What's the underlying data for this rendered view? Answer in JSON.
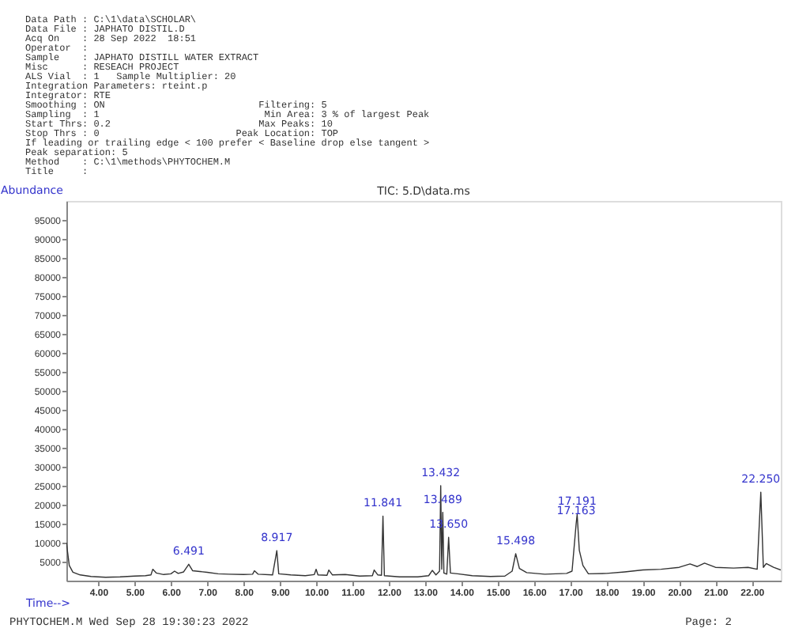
{
  "chart_data": {
    "type": "line",
    "title": "TIC: 5.D\\data.ms",
    "xlabel": "Time-->",
    "ylabel": "Abundance",
    "annotations": [
      "Data Path : C:\\1\\data\\SCHOLAR\\",
      "Data File : JAPHATO DISTIL.D",
      "Acq On    : 28 Sep 2022  18:51",
      "Operator  :",
      "Sample    : JAPHATO DISTILL WATER EXTRACT",
      "Misc      : RESEACH PROJECT",
      "ALS Vial  : 1   Sample Multiplier: 20",
      "Integration Parameters: rteint.p",
      "Integrator: RTE",
      "Smoothing : ON                           Filtering: 5",
      "Sampling  : 1                             Min Area: 3 % of largest Peak",
      "Start Thrs: 0.2                          Max Peaks: 10",
      "Stop Thrs : 0                        Peak Location: TOP",
      "If leading or trailing edge < 100 prefer < Baseline drop else tangent >",
      "Peak separation: 5",
      "Method    : C:\\1\\methods\\PHYTOCHEM.M",
      "Title     :",
      {
        "text": "6.491",
        "x": 6.491,
        "y": 4300
      },
      {
        "text": "8.917",
        "x": 8.917,
        "y": 7900
      },
      {
        "text": "11.841",
        "x": 11.841,
        "y": 17000
      },
      {
        "text": "13.432",
        "x": 13.432,
        "y": 25000
      },
      {
        "text": "13.489",
        "x": 13.489,
        "y": 18000
      },
      {
        "text": "13.650",
        "x": 13.65,
        "y": 11400
      },
      {
        "text": "15.498",
        "x": 15.498,
        "y": 7100
      },
      {
        "text": "17.191",
        "x": 17.191,
        "y": 17400
      },
      {
        "text": "17.163",
        "x": 17.163,
        "y": 15000
      },
      {
        "text": "22.250",
        "x": 22.25,
        "y": 23300
      },
      "PHYTOCHEM.M Wed Sep 28 19:30:23 2022",
      "Page: 2"
    ],
    "x": [
      3.12,
      3.2,
      3.3,
      3.5,
      3.8,
      4.2,
      4.6,
      5.0,
      5.3,
      5.45,
      5.5,
      5.6,
      5.8,
      6.0,
      6.1,
      6.2,
      6.35,
      6.491,
      6.6,
      6.8,
      7.0,
      7.3,
      7.6,
      8.0,
      8.25,
      8.3,
      8.4,
      8.8,
      8.917,
      8.97,
      9.3,
      9.7,
      9.95,
      10.0,
      10.05,
      10.3,
      10.35,
      10.45,
      10.8,
      11.2,
      11.55,
      11.6,
      11.7,
      11.8,
      11.841,
      11.88,
      12.3,
      12.8,
      13.1,
      13.2,
      13.3,
      13.4,
      13.432,
      13.46,
      13.489,
      13.52,
      13.6,
      13.65,
      13.7,
      13.9,
      14.3,
      14.8,
      15.2,
      15.4,
      15.498,
      15.6,
      15.8,
      16.3,
      16.9,
      17.05,
      17.163,
      17.191,
      17.25,
      17.35,
      17.5,
      18.0,
      18.5,
      19.0,
      19.5,
      20.0,
      20.3,
      20.5,
      20.7,
      21.0,
      21.5,
      21.9,
      22.15,
      22.25,
      22.32,
      22.4,
      22.6,
      22.8
    ],
    "series": [
      {
        "color": "#333333",
        "values": [
          10000,
          4000,
          2200,
          1500,
          1100,
          900,
          1000,
          1200,
          1300,
          1500,
          3000,
          2000,
          1600,
          1800,
          2500,
          1900,
          2300,
          4300,
          2600,
          2400,
          2200,
          1800,
          1700,
          1600,
          1700,
          2600,
          1700,
          1500,
          7900,
          1800,
          1500,
          1300,
          1600,
          3000,
          1500,
          1400,
          2800,
          1500,
          1600,
          1200,
          1300,
          2800,
          1500,
          1400,
          17000,
          1300,
          1000,
          1000,
          1300,
          2700,
          1500,
          2500,
          25000,
          3000,
          18000,
          2000,
          1700,
          11400,
          2000,
          1800,
          1300,
          1100,
          1200,
          2500,
          7100,
          3200,
          2100,
          1700,
          1900,
          2500,
          15000,
          17400,
          8000,
          4000,
          1800,
          1900,
          2300,
          2800,
          3000,
          3500,
          4400,
          3700,
          4600,
          3500,
          3300,
          3500,
          3000,
          23300,
          3500,
          4500,
          3500,
          2800
        ]
      }
    ],
    "xlim": [
      3.12,
      22.8
    ],
    "ylim": [
      0,
      100000
    ],
    "xticks": [
      {
        "value": 4,
        "label": "4.00"
      },
      {
        "value": 5,
        "label": "5.00"
      },
      {
        "value": 6,
        "label": "6.00"
      },
      {
        "value": 7,
        "label": "7.00"
      },
      {
        "value": 8,
        "label": "8.00"
      },
      {
        "value": 9,
        "label": "9.00"
      },
      {
        "value": 10,
        "label": "10.00"
      },
      {
        "value": 11,
        "label": "11.00"
      },
      {
        "value": 12,
        "label": "12.00"
      },
      {
        "value": 13,
        "label": "13.00"
      },
      {
        "value": 14,
        "label": "14.00"
      },
      {
        "value": 15,
        "label": "15.00"
      },
      {
        "value": 16,
        "label": "16.00"
      },
      {
        "value": 17,
        "label": "17.00"
      },
      {
        "value": 18,
        "label": "18.00"
      },
      {
        "value": 19,
        "label": "19.00"
      },
      {
        "value": 20,
        "label": "20.00"
      },
      {
        "value": 21,
        "label": "21.00"
      },
      {
        "value": 22,
        "label": "22.00"
      }
    ],
    "yticks": [
      5000,
      10000,
      15000,
      20000,
      25000,
      30000,
      35000,
      40000,
      45000,
      50000,
      55000,
      60000,
      65000,
      70000,
      75000,
      80000,
      85000,
      90000,
      95000
    ],
    "grid": false,
    "legend": false,
    "marker": "none",
    "line_style": "solid"
  }
}
